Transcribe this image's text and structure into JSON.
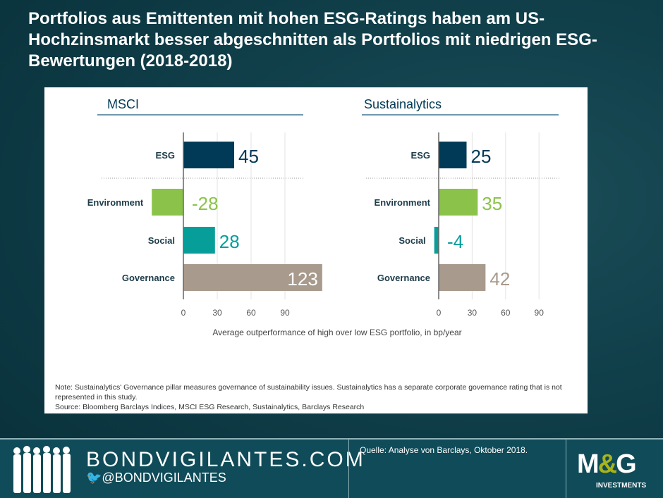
{
  "title": "Portfolios aus Emittenten mit hohen ESG-Ratings haben am US-Hochzinsmarkt besser abgeschnitten als Portfolios mit niedrigen ESG-Bewertungen (2018-2018)",
  "chart_data": [
    {
      "type": "bar",
      "orientation": "horizontal",
      "title": "MSCI",
      "categories": [
        "ESG",
        "Environment",
        "Social",
        "Governance"
      ],
      "values": [
        45,
        -28,
        28,
        123
      ],
      "xticks": [
        0,
        30,
        60,
        90
      ],
      "xlim": [
        -30,
        125
      ],
      "grid": true
    },
    {
      "type": "bar",
      "orientation": "horizontal",
      "title": "Sustainalytics",
      "categories": [
        "ESG",
        "Environment",
        "Social",
        "Governance"
      ],
      "values": [
        25,
        35,
        -4,
        42
      ],
      "xticks": [
        0,
        30,
        60,
        90
      ],
      "xlim": [
        -30,
        125
      ],
      "grid": true
    }
  ],
  "xlabel": "Average outperformance of high over low ESG portfolio, in bp/year",
  "colors": {
    "ESG": "#003a56",
    "Environment": "#8bc34a",
    "Social": "#079e9a",
    "Governance": "#a89a8c"
  },
  "label_colors": {
    "ESG": "#003a56",
    "Environment": "#8bc34a",
    "Social": "#079e9a",
    "Governance": "#a89a8c"
  },
  "note": "Note: Sustainalytics' Governance pillar measures governance of sustainability issues. Sustainalytics has a separate corporate governance rating that is not represented in this study.",
  "source": "Source: Bloomberg Barclays Indices, MSCI ESG Research, Sustainalytics, Barclays Research",
  "footer": {
    "site": "BONDVIGILANTES.COM",
    "twitter": "@BONDVIGILANTES",
    "quelle": "Quelle:  Analyse von  Barclays, Oktober 2018.",
    "logo_main": "M&G",
    "logo_sub": "INVESTMENTS"
  }
}
